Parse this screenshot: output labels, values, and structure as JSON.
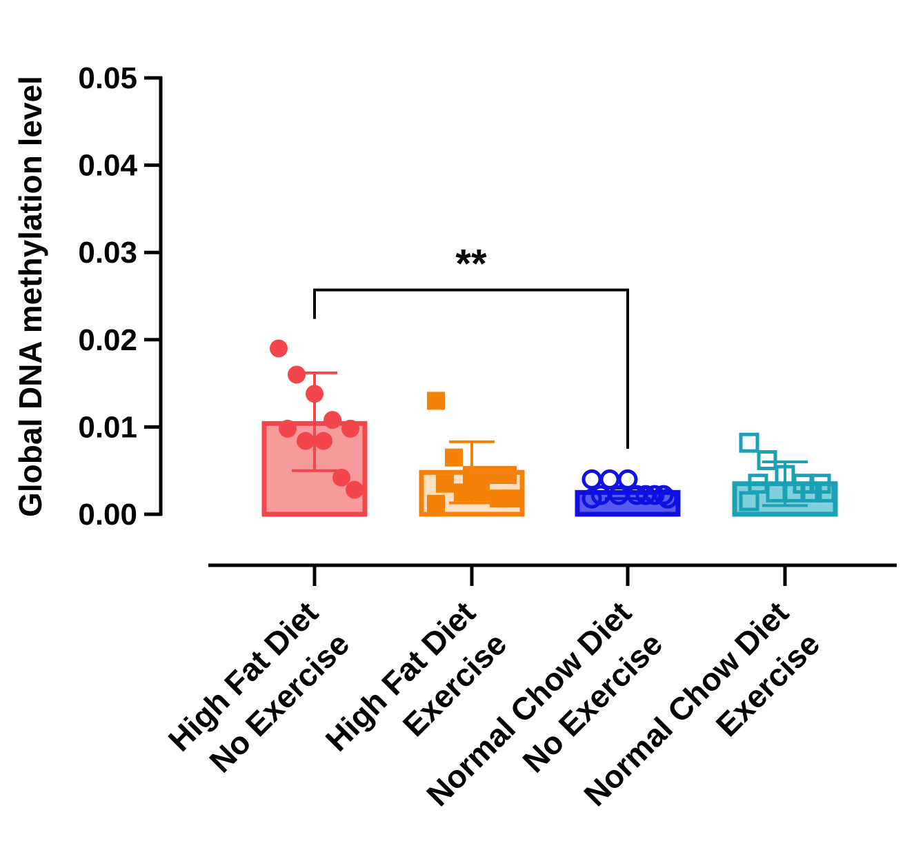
{
  "chart_data": {
    "type": "bar",
    "title": "",
    "xlabel": "",
    "ylabel": "Global DNA methylation level",
    "ylim": [
      0,
      0.05
    ],
    "yticks": [
      "0.00",
      "0.01",
      "0.02",
      "0.03",
      "0.04",
      "0.05"
    ],
    "ytick_values": [
      0,
      0.01,
      0.02,
      0.03,
      0.04,
      0.05
    ],
    "grid": false,
    "categories": [
      [
        "High Fat Diet",
        "No Exercise"
      ],
      [
        "High Fat Diet",
        "Exercise"
      ],
      [
        "Normal Chow Diet",
        "No Exercise"
      ],
      [
        "Normal Chow Diet",
        "Exercise"
      ]
    ],
    "series": [
      {
        "name": "High Fat Diet No Exercise",
        "color": "#f2464b",
        "fill": "#f69a9c",
        "marker": "circle-filled",
        "mean": 0.0104,
        "sd_upper": 0.0162,
        "sd_lower": 0.005,
        "points": [
          0.019,
          0.016,
          0.0138,
          0.0108,
          0.0098,
          0.0098,
          0.0084,
          0.0084,
          0.0042,
          0.0028
        ]
      },
      {
        "name": "High Fat Diet Exercise",
        "color": "#f4820a",
        "fill": "#fce0c2",
        "marker": "square-filled",
        "mean": 0.0048,
        "sd_upper": 0.0083,
        "sd_lower": 0.0013,
        "points": [
          0.013,
          0.0065,
          0.0045,
          0.0045,
          0.0045,
          0.0035,
          0.0025,
          0.0025,
          0.0018,
          0.0018,
          0.0012
        ]
      },
      {
        "name": "Normal Chow Diet No Exercise",
        "color": "#1010e0",
        "fill": "#5a5af0",
        "marker": "circle-open",
        "mean": 0.0025,
        "sd_upper": 0.003,
        "sd_lower": 0.0018,
        "points": [
          0.004,
          0.004,
          0.004,
          0.0022,
          0.0022,
          0.0022,
          0.0022,
          0.0022,
          0.0022,
          0.0018,
          0.0018
        ]
      },
      {
        "name": "Normal Chow Diet Exercise",
        "color": "#1aa1b4",
        "fill": "#7fd0da",
        "marker": "square-open",
        "mean": 0.0035,
        "sd_upper": 0.006,
        "sd_lower": 0.001,
        "points": [
          0.0082,
          0.0062,
          0.0045,
          0.0035,
          0.0035,
          0.0035,
          0.0025,
          0.0025,
          0.0025,
          0.0025,
          0.0015
        ]
      }
    ],
    "annotations": [
      {
        "label": "**",
        "from_category": 0,
        "to_category": 2,
        "y": 0.0257
      }
    ]
  }
}
